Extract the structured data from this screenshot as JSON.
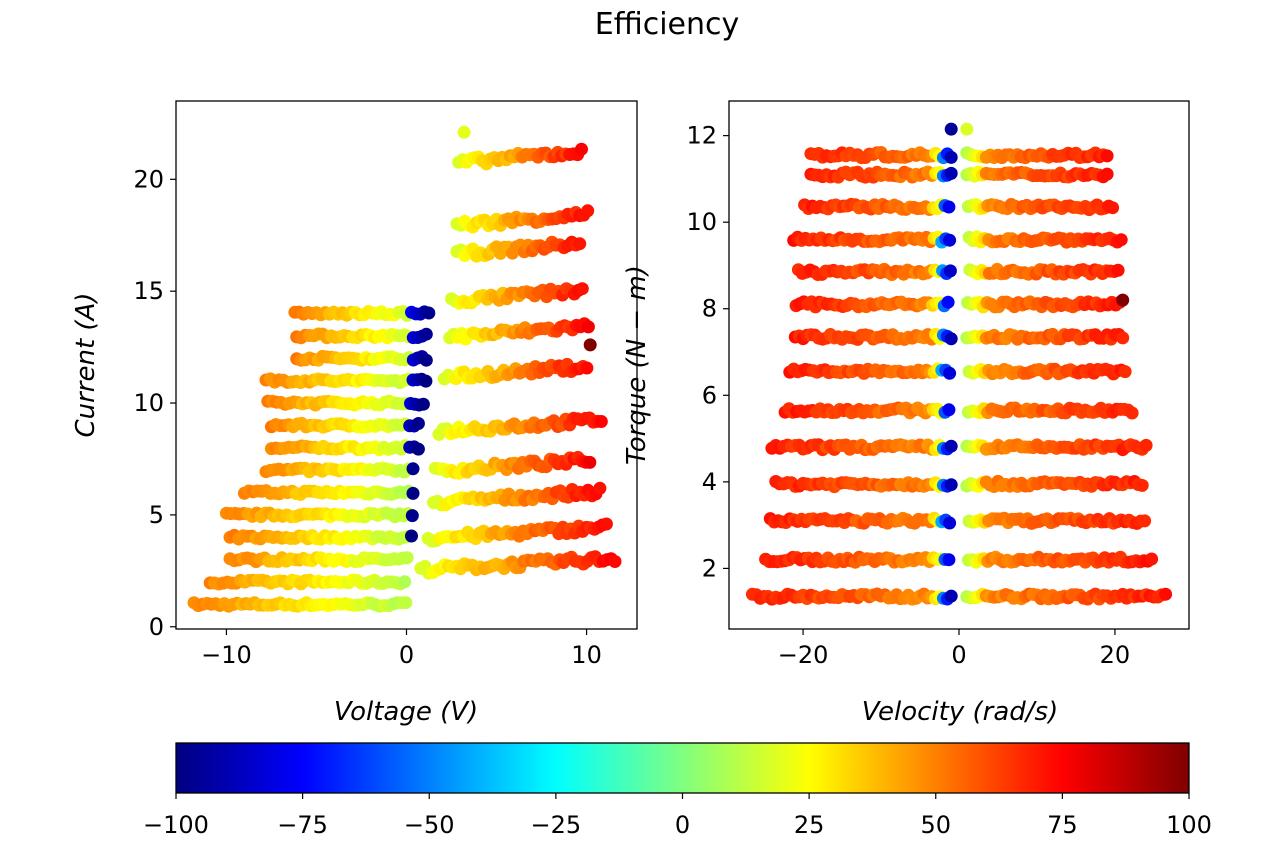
{
  "chart_data": {
    "type": "scatter",
    "title": "Efficiency",
    "colormap": "jet",
    "colorbar": {
      "range": [
        -100,
        100
      ],
      "ticks": [
        "−100",
        "−75",
        "−50",
        "−25",
        "0",
        "25",
        "50",
        "75",
        "100"
      ]
    },
    "subplots": [
      {
        "xlabel": "Voltage (V)",
        "ylabel": "Current (A)",
        "xlim": [
          -12.8,
          12.8
        ],
        "ylim": [
          -0.1,
          23.5
        ],
        "xticks": [
          "−10",
          "0",
          "10"
        ],
        "yticks": [
          "0",
          "5",
          "10",
          "15",
          "20"
        ],
        "motoring_region": [
          {
            "current": 1,
            "v_min": -11.8,
            "v_max": 0.0
          },
          {
            "current": 2,
            "v_min": -10.9,
            "v_max": 0.0
          },
          {
            "current": 3,
            "v_min": -9.8,
            "v_max": 0.2
          },
          {
            "current": 4,
            "v_min": -9.8,
            "v_max": 0.3
          },
          {
            "current": 5,
            "v_min": -10.0,
            "v_max": 0.4
          },
          {
            "current": 6,
            "v_min": -9.0,
            "v_max": 0.4
          },
          {
            "current": 7,
            "v_min": -7.8,
            "v_max": 0.5
          },
          {
            "current": 8,
            "v_min": -7.5,
            "v_max": 0.7
          },
          {
            "current": 9,
            "v_min": -7.5,
            "v_max": 0.8
          },
          {
            "current": 10,
            "v_min": -7.7,
            "v_max": 1.0
          },
          {
            "current": 11,
            "v_min": -7.8,
            "v_max": 1.1
          },
          {
            "current": 12,
            "v_min": -6.1,
            "v_max": 1.2
          },
          {
            "current": 13,
            "v_min": -6.1,
            "v_max": 1.3
          },
          {
            "current": 14,
            "v_min": -6.2,
            "v_max": 1.4
          }
        ],
        "generating_region": [
          {
            "current": 2.8,
            "v_min": 0.8,
            "v_max": 11.6
          },
          {
            "current": 4.2,
            "v_min": 1.2,
            "v_max": 11.1
          },
          {
            "current": 5.8,
            "v_min": 1.5,
            "v_max": 10.9
          },
          {
            "current": 7.2,
            "v_min": 1.6,
            "v_max": 10.3
          },
          {
            "current": 9.0,
            "v_min": 1.8,
            "v_max": 10.9
          },
          {
            "current": 11.4,
            "v_min": 2.1,
            "v_max": 10.2
          },
          {
            "current": 13.2,
            "v_min": 2.4,
            "v_max": 10.3
          },
          {
            "current": 14.8,
            "v_min": 2.5,
            "v_max": 9.9
          },
          {
            "current": 16.9,
            "v_min": 2.8,
            "v_max": 9.8
          },
          {
            "current": 18.2,
            "v_min": 2.8,
            "v_max": 10.2
          },
          {
            "current": 21.0,
            "v_min": 2.9,
            "v_max": 9.9
          }
        ],
        "outliers": [
          {
            "x": 10.2,
            "y": 12.6,
            "efficiency": 100
          },
          {
            "x": 3.2,
            "y": 22.1,
            "efficiency": 20
          }
        ]
      },
      {
        "xlabel": "Velocity (rad/s)",
        "ylabel": "Torque (N − m)",
        "xlim": [
          -29.5,
          29.5
        ],
        "ylim": [
          0.6,
          12.8
        ],
        "xticks": [
          "−20",
          "0",
          "20"
        ],
        "yticks": [
          "2",
          "4",
          "6",
          "8",
          "10",
          "12"
        ],
        "bands": [
          {
            "torque": 1.35,
            "v_max": 26.5
          },
          {
            "torque": 2.2,
            "v_max": 24.8
          },
          {
            "torque": 3.1,
            "v_max": 24.2
          },
          {
            "torque": 3.95,
            "v_max": 23.5
          },
          {
            "torque": 4.8,
            "v_max": 24.0
          },
          {
            "torque": 5.65,
            "v_max": 22.3
          },
          {
            "torque": 6.55,
            "v_max": 21.7
          },
          {
            "torque": 7.35,
            "v_max": 21.0
          },
          {
            "torque": 8.1,
            "v_max": 20.9
          },
          {
            "torque": 8.85,
            "v_max": 20.6
          },
          {
            "torque": 9.6,
            "v_max": 21.2
          },
          {
            "torque": 10.35,
            "v_max": 19.8
          },
          {
            "torque": 11.1,
            "v_max": 19.0
          },
          {
            "torque": 11.55,
            "v_max": 19.0
          }
        ],
        "outliers": [
          {
            "x": 21.0,
            "y": 8.2,
            "efficiency": 100
          },
          {
            "x": -1.0,
            "y": 12.15,
            "efficiency": -95
          },
          {
            "x": 1.0,
            "y": 12.15,
            "efficiency": 18
          }
        ]
      }
    ]
  }
}
